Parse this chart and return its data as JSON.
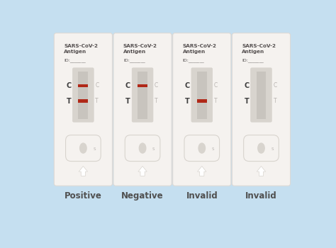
{
  "background_color": "#c5dff0",
  "card_color": "#f5f2ef",
  "card_edge": "#ddd9d5",
  "window_outer_color": "#d8d4ce",
  "window_inner_color": "#c4c0ba",
  "strip_color": "#c8c4be",
  "line_color_red": "#b02818",
  "text_color_dark": "#555050",
  "text_color_ct_left": "#404040",
  "text_color_ct_right": "#b8b4b0",
  "label_color": "#505050",
  "cards": [
    {
      "label": "Positive",
      "C_line": true,
      "T_line": true
    },
    {
      "label": "Negative",
      "C_line": true,
      "T_line": false
    },
    {
      "label": "Invalid",
      "C_line": false,
      "T_line": true
    },
    {
      "label": "Invalid",
      "C_line": false,
      "T_line": false
    }
  ]
}
